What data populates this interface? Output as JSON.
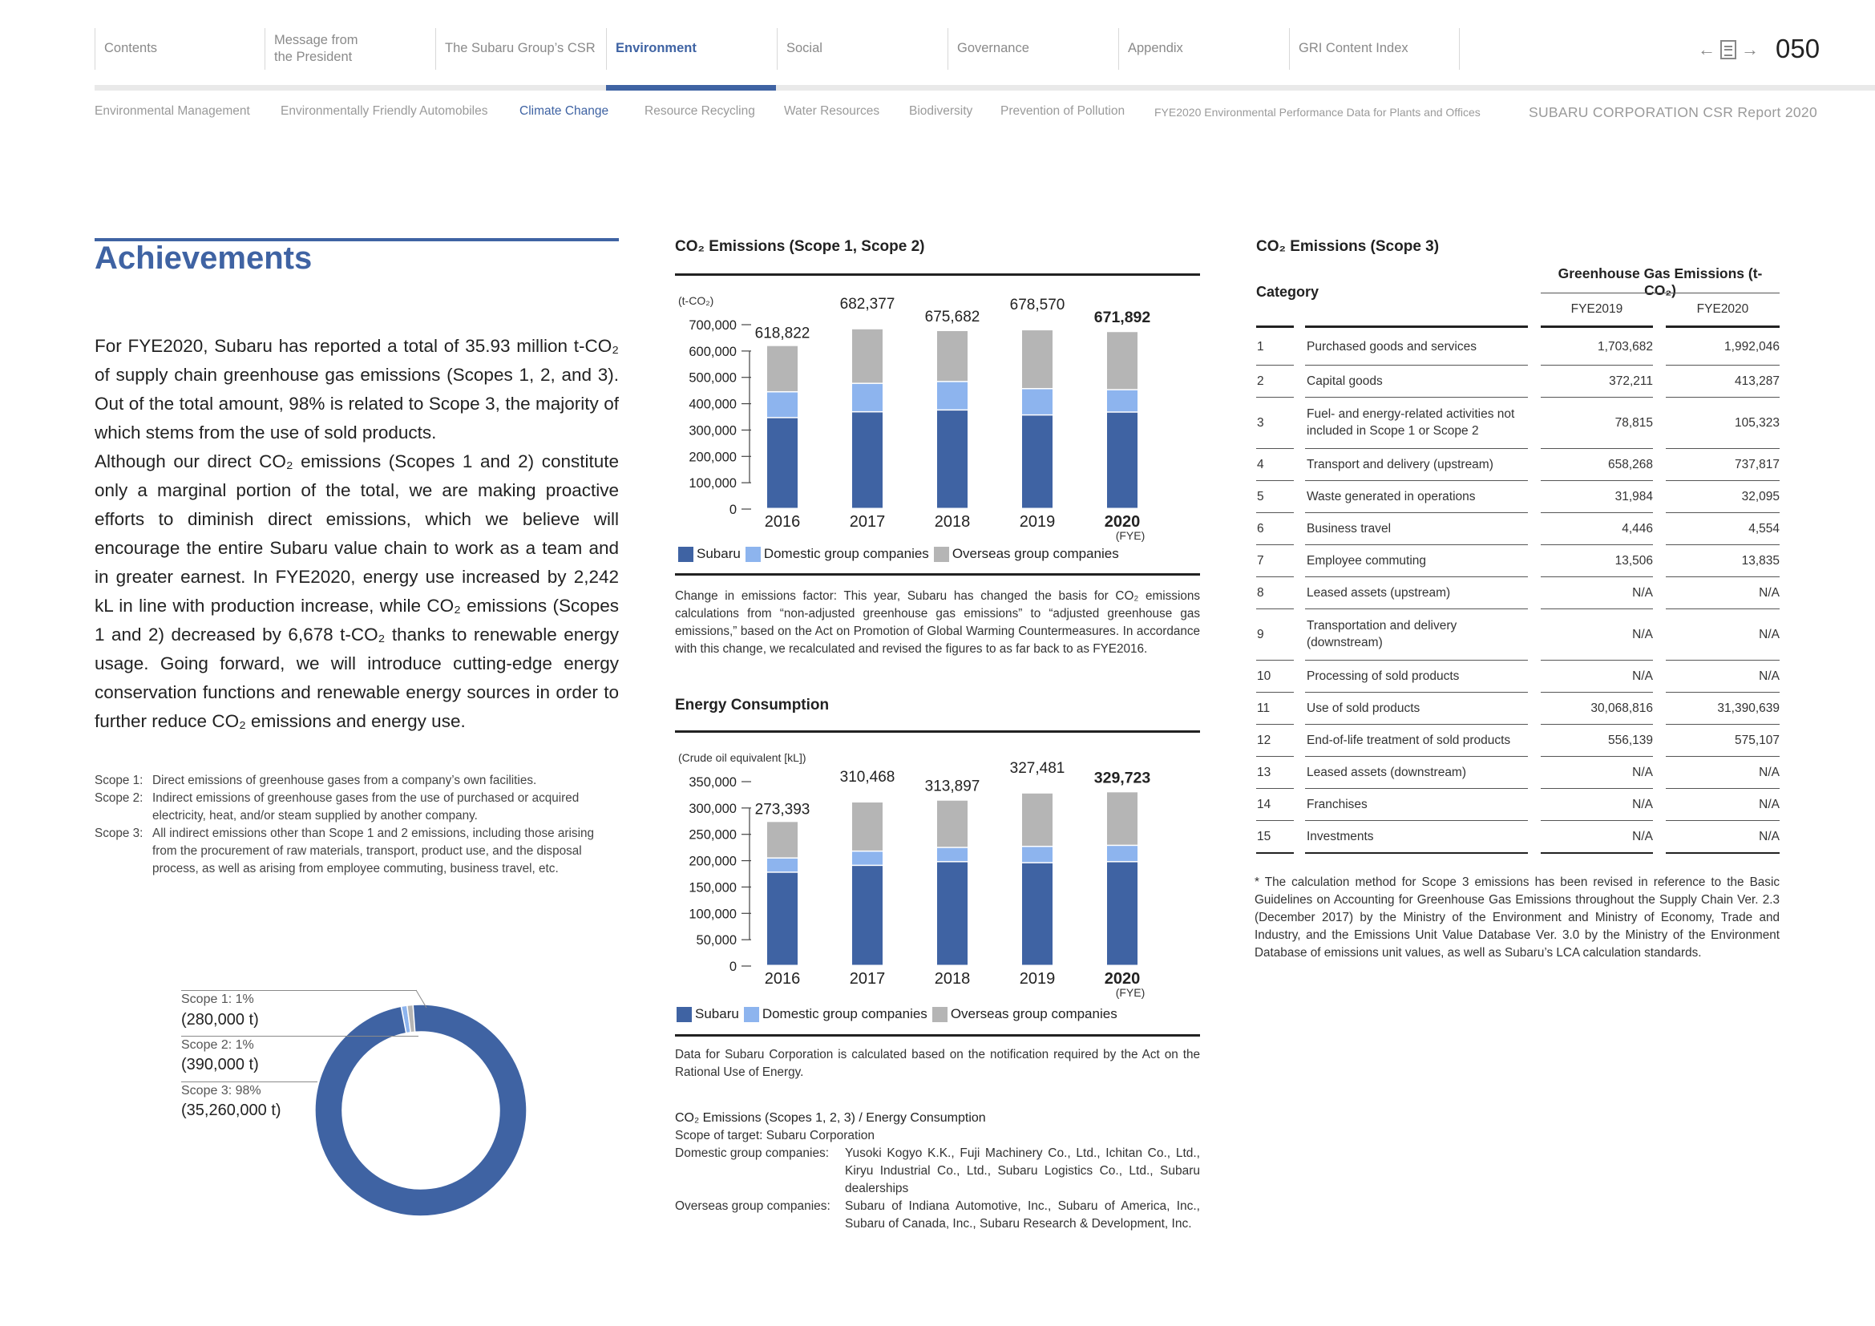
{
  "nav": {
    "tabs": [
      {
        "label": "Contents",
        "active": false
      },
      {
        "label": "Message from the President",
        "active": false
      },
      {
        "label": "The Subaru Group’s CSR",
        "active": false
      },
      {
        "label": "Environment",
        "active": true
      },
      {
        "label": "Social",
        "active": false
      },
      {
        "label": "Governance",
        "active": false
      },
      {
        "label": "Appendix",
        "active": false
      },
      {
        "label": "GRI Content Index",
        "active": false
      }
    ],
    "page_number": "050",
    "prev_icon": "arrow-left-icon",
    "toc_icon": "document-icon",
    "next_icon": "arrow-right-icon"
  },
  "subnav": {
    "items": [
      {
        "label": "Environmental Management",
        "active": false
      },
      {
        "label": "Environmentally Friendly Automobiles",
        "active": false
      },
      {
        "label": "Climate Change",
        "active": true
      },
      {
        "label": "Resource Recycling",
        "active": false
      },
      {
        "label": "Water Resources",
        "active": false
      },
      {
        "label": "Biodiversity",
        "active": false
      },
      {
        "label": "Prevention of Pollution",
        "active": false
      },
      {
        "label": "FYE2020 Environmental Performance Data for Plants and Offices",
        "active": false
      }
    ],
    "report_title": "SUBARU CORPORATION CSR Report 2020"
  },
  "colors": {
    "accent": "#3f63a3",
    "subaru": "#3f63a3",
    "domestic": "#8db4ee",
    "overseas": "#b5b5b5"
  },
  "achievements": {
    "title": "Achievements",
    "paragraphs": [
      "For FYE2020, Subaru has reported a total of 35.93 million t-CO₂ of supply chain greenhouse gas emissions (Scopes 1, 2, and 3). Out of the total amount, 98% is related to Scope 3, the majority of which stems from the use of sold products.",
      "Although our direct CO₂ emissions (Scopes 1 and 2) constitute only a marginal portion of the total, we are making proactive efforts to diminish direct emissions, which we believe will encourage the entire Subaru value chain to work as a team and in greater earnest. In FYE2020, energy use increased by 2,242 kL in line with production increase, while CO₂ emissions (Scopes 1 and 2) decreased by 6,678 t-CO₂ thanks to renewable energy usage. Going forward, we will introduce cutting-edge energy conservation functions and renewable energy sources in order to further reduce CO₂ emissions and energy use."
    ],
    "scope_defs": [
      {
        "key": "Scope 1:",
        "text": "Direct emissions of greenhouse gases from a company’s own facilities."
      },
      {
        "key": "Scope 2:",
        "text": "Indirect emissions of greenhouse gases from the use of purchased or acquired electricity, heat, and/or steam supplied by another company."
      },
      {
        "key": "Scope 3:",
        "text": "All indirect emissions other than Scope 1 and 2 emissions, including those arising from the procurement of raw materials, transport, product use, and the disposal process, as well as arising from employee commuting, business travel, etc."
      }
    ],
    "donut": {
      "scope1_label": "Scope 1: 1%",
      "scope1_value": "(280,000 t)",
      "scope2_label": "Scope 2: 1%",
      "scope2_value": "(390,000 t)",
      "scope3_label": "Scope 3: 98%",
      "scope3_value": "(35,260,000 t)"
    }
  },
  "co2_chart": {
    "title": "CO₂ Emissions (Scope 1, Scope 2)",
    "note": "Change in emissions factor: This year, Subaru has changed the basis for CO₂ emissions calculations from “non-adjusted greenhouse gas emissions” to “adjusted greenhouse gas emissions,” based on the Act on Promotion of Global Warming Countermeasures. In accordance with this change, we recalculated and revised the figures to as far back to as FYE2016."
  },
  "energy_chart": {
    "title": "Energy Consumption",
    "note": "Data for Subaru Corporation is calculated based on the notification required by the Act on the Rational Use of Energy."
  },
  "legend": {
    "subaru": "Subaru",
    "domestic": "Domestic group companies",
    "overseas": "Overseas group companies"
  },
  "scope_of_target": {
    "title": "CO₂ Emissions (Scopes 1, 2, 3) / Energy Consumption",
    "line1": "Scope of target: Subaru Corporation",
    "domestic_key": "Domestic group companies:",
    "domestic_val": "Yusoki Kogyo K.K., Fuji Machinery Co., Ltd., Ichitan Co., Ltd., Kiryu Industrial Co., Ltd., Subaru Logistics Co., Ltd., Subaru dealerships",
    "overseas_key": "Overseas group companies:",
    "overseas_val": "Subaru of Indiana Automotive, Inc., Subaru of America, Inc., Subaru of Canada, Inc., Subaru Research & Development, Inc."
  },
  "scope3_table": {
    "title": "CO₂ Emissions (Scope 3)",
    "category_header": "Category",
    "ghg_header": "Greenhouse Gas Emissions (t- CO₂)",
    "fy2019": "FYE2019",
    "fy2020": "FYE2020",
    "rows": [
      {
        "no": "1",
        "name": "Purchased goods and services",
        "fy2019": "1,703,682",
        "fy2020": "1,992,046"
      },
      {
        "no": "2",
        "name": "Capital goods",
        "fy2019": "372,211",
        "fy2020": "413,287"
      },
      {
        "no": "3",
        "name": "Fuel- and energy-related activities not included in Scope 1 or Scope 2",
        "fy2019": "78,815",
        "fy2020": "105,323"
      },
      {
        "no": "4",
        "name": "Transport and delivery (upstream)",
        "fy2019": "658,268",
        "fy2020": "737,817"
      },
      {
        "no": "5",
        "name": "Waste generated in operations",
        "fy2019": "31,984",
        "fy2020": "32,095"
      },
      {
        "no": "6",
        "name": "Business travel",
        "fy2019": "4,446",
        "fy2020": "4,554"
      },
      {
        "no": "7",
        "name": "Employee commuting",
        "fy2019": "13,506",
        "fy2020": "13,835"
      },
      {
        "no": "8",
        "name": "Leased assets (upstream)",
        "fy2019": "N/A",
        "fy2020": "N/A"
      },
      {
        "no": "9",
        "name": "Transportation and delivery (downstream)",
        "fy2019": "N/A",
        "fy2020": "N/A"
      },
      {
        "no": "10",
        "name": "Processing of sold products",
        "fy2019": "N/A",
        "fy2020": "N/A"
      },
      {
        "no": "11",
        "name": "Use of sold products",
        "fy2019": "30,068,816",
        "fy2020": "31,390,639"
      },
      {
        "no": "12",
        "name": "End-of-life treatment of sold products",
        "fy2019": "556,139",
        "fy2020": "575,107"
      },
      {
        "no": "13",
        "name": "Leased assets (downstream)",
        "fy2019": "N/A",
        "fy2020": "N/A"
      },
      {
        "no": "14",
        "name": "Franchises",
        "fy2019": "N/A",
        "fy2020": "N/A"
      },
      {
        "no": "15",
        "name": "Investments",
        "fy2019": "N/A",
        "fy2020": "N/A"
      }
    ],
    "footnote": "* The calculation method for Scope 3 emissions has been revised in reference to the Basic Guidelines on Accounting for Greenhouse Gas Emissions throughout the Supply Chain Ver. 2.3 (December 2017) by the Ministry of the Environment and Ministry of Economy, Trade and Industry, and the Emissions Unit Value Database Ver. 3.0 by the Ministry of the Environment Database of emissions unit values, as well as Subaru’s LCA calculation standards."
  },
  "chart_data": [
    {
      "type": "bar",
      "stacked": true,
      "title": "CO₂ Emissions (Scope 1, Scope 2)",
      "unit": "(t-CO₂)",
      "categories": [
        "2016",
        "2017",
        "2018",
        "2019",
        "2020"
      ],
      "category_suffix": "(FYE)",
      "highlight_last": true,
      "totals": [
        618822,
        682377,
        675682,
        678570,
        671892
      ],
      "total_labels": [
        "618,822",
        "682,377",
        "675,682",
        "678,570",
        "671,892"
      ],
      "series": [
        {
          "name": "Subaru",
          "values": [
            345000,
            367000,
            374000,
            355000,
            366000
          ]
        },
        {
          "name": "Domestic group companies",
          "values": [
            98000,
            108000,
            108000,
            100000,
            85000
          ]
        },
        {
          "name": "Overseas group companies",
          "values": [
            175822,
            207377,
            193682,
            223570,
            220892
          ]
        }
      ],
      "ylim": [
        0,
        700000
      ],
      "yticks": [
        0,
        100000,
        200000,
        300000,
        400000,
        500000,
        600000,
        700000
      ],
      "ytick_labels": [
        "0",
        "100,000",
        "200,000",
        "300,000",
        "400,000",
        "500,000",
        "600,000",
        "700,000"
      ],
      "legend": "bottom"
    },
    {
      "type": "bar",
      "stacked": true,
      "title": "Energy Consumption",
      "unit": "(Crude oil equivalent [kL])",
      "categories": [
        "2016",
        "2017",
        "2018",
        "2019",
        "2020"
      ],
      "category_suffix": "(FYE)",
      "highlight_last": true,
      "totals": [
        273393,
        310468,
        313897,
        327481,
        329723
      ],
      "total_labels": [
        "273,393",
        "310,468",
        "313,897",
        "327,481",
        "329,723"
      ],
      "series": [
        {
          "name": "Subaru",
          "values": [
            177000,
            190000,
            197000,
            195000,
            197000
          ]
        },
        {
          "name": "Domestic group companies",
          "values": [
            27000,
            27000,
            27000,
            31000,
            31000
          ]
        },
        {
          "name": "Overseas group companies",
          "values": [
            69393,
            93468,
            89897,
            101481,
            101723
          ]
        }
      ],
      "ylim": [
        0,
        350000
      ],
      "yticks": [
        0,
        50000,
        100000,
        150000,
        200000,
        250000,
        300000,
        350000
      ],
      "ytick_labels": [
        "0",
        "50,000",
        "100,000",
        "150,000",
        "200,000",
        "250,000",
        "300,000",
        "350,000"
      ],
      "legend": "bottom"
    },
    {
      "type": "pie",
      "donut": true,
      "labels": [
        "Scope 1",
        "Scope 2",
        "Scope 3"
      ],
      "values": [
        280000,
        390000,
        35260000
      ],
      "percent_labels": [
        "1%",
        "1%",
        "98%"
      ]
    }
  ]
}
